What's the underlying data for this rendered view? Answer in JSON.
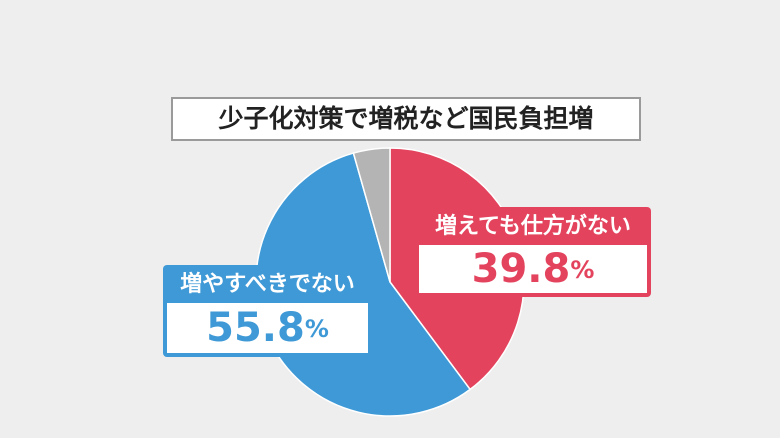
{
  "chart_data": {
    "type": "pie",
    "title": "少子化対策で増税など国民負担増",
    "categories": [
      "増えても仕方がない",
      "増やすべきでない",
      null
    ],
    "values": [
      39.8,
      55.8,
      4.4
    ],
    "value_labels": [
      "39.8%",
      "55.8%",
      null
    ],
    "colors": [
      "#e3435d",
      "#3e99d6",
      "#b4b4b4"
    ]
  }
}
